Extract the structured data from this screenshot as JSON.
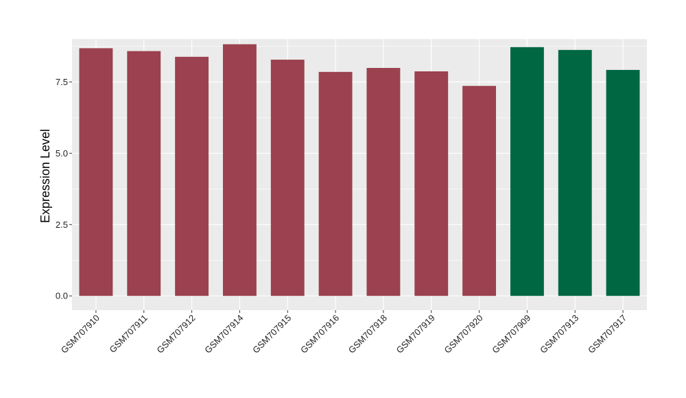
{
  "chart_data": {
    "type": "bar",
    "title": "",
    "xlabel": "",
    "ylabel": "Expression Level",
    "ylim": [
      -0.5,
      9.0
    ],
    "yticks": [
      0.0,
      2.5,
      5.0,
      7.5
    ],
    "ytick_labels": [
      "0.0",
      "2.5",
      "5.0",
      "7.5"
    ],
    "grid": true,
    "legend": "none",
    "categories": [
      "GSM707910",
      "GSM707911",
      "GSM707912",
      "GSM707914",
      "GSM707915",
      "GSM707916",
      "GSM707918",
      "GSM707919",
      "GSM707920",
      "GSM707909",
      "GSM707913",
      "GSM707917"
    ],
    "values": [
      8.68,
      8.58,
      8.38,
      8.82,
      8.28,
      7.85,
      7.99,
      7.87,
      7.36,
      8.72,
      8.62,
      7.92
    ],
    "groups": [
      "a",
      "a",
      "a",
      "a",
      "a",
      "a",
      "a",
      "a",
      "a",
      "b",
      "b",
      "b"
    ],
    "group_colors": {
      "a": "#9b414f",
      "b": "#006743"
    },
    "panel_background": "#ebebeb",
    "grid_color": "#ffffff"
  }
}
